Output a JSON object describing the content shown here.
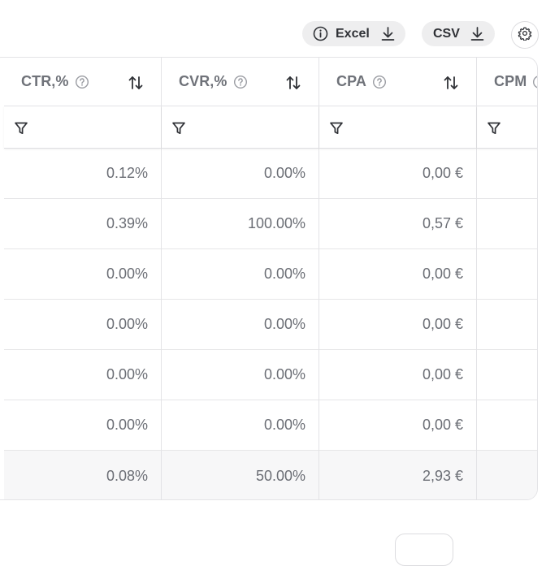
{
  "toolbar": {
    "excel_label": "Excel",
    "csv_label": "CSV"
  },
  "table": {
    "columns": [
      {
        "label": "CTR,%",
        "has_help": true
      },
      {
        "label": "CVR,%",
        "has_help": true
      },
      {
        "label": "CPA",
        "has_help": true
      },
      {
        "label": "CPM",
        "has_help": true
      }
    ],
    "rows": [
      [
        "0.12%",
        "0.00%",
        "0,00 €",
        ""
      ],
      [
        "0.39%",
        "100.00%",
        "0,57 €",
        ""
      ],
      [
        "0.00%",
        "0.00%",
        "0,00 €",
        ""
      ],
      [
        "0.00%",
        "0.00%",
        "0,00 €",
        ""
      ],
      [
        "0.00%",
        "0.00%",
        "0,00 €",
        ""
      ],
      [
        "0.00%",
        "0.00%",
        "0,00 €",
        ""
      ]
    ],
    "totals": [
      "0.08%",
      "50.00%",
      "2,93 €",
      ""
    ]
  },
  "colors": {
    "border": "#e3e3e6",
    "text": "#6b6e75",
    "pill_bg": "#eeeeef",
    "total_bg": "#f7f7f8"
  },
  "icons": [
    "info-icon",
    "download-icon",
    "gear-icon",
    "help-icon",
    "sort-icon",
    "filter-icon"
  ]
}
